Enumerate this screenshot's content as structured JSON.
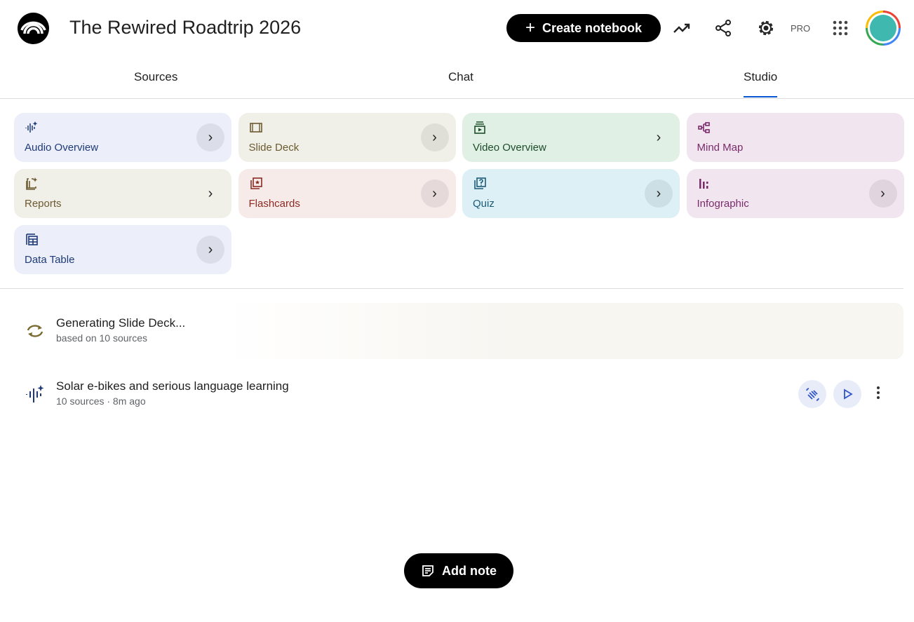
{
  "header": {
    "title": "The Rewired Roadtrip 2026",
    "create_label": "Create notebook",
    "pro_label": "PRO",
    "icons": [
      "analytics-icon",
      "share-icon",
      "settings-icon",
      "apps-grid-icon"
    ]
  },
  "tabs": [
    {
      "label": "Sources"
    },
    {
      "label": "Chat"
    },
    {
      "label": "Studio",
      "active": true
    }
  ],
  "studio_cards": [
    {
      "label": "Audio Overview",
      "icon": "audio-waveform-icon",
      "bg": "#eceffa",
      "color": "#1f3a78",
      "chevron_bg": true
    },
    {
      "label": "Slide Deck",
      "icon": "slides-icon",
      "bg": "#f1f0e8",
      "color": "#6b5a30",
      "chevron_bg": true
    },
    {
      "label": "Video Overview",
      "icon": "video-icon",
      "bg": "#e1f0e5",
      "color": "#1d4d2b",
      "chevron_bg": false
    },
    {
      "label": "Mind Map",
      "icon": "mind-map-icon",
      "bg": "#f1e6f0",
      "color": "#7a2a6b",
      "chevron": false
    },
    {
      "label": "Reports",
      "icon": "reports-icon",
      "bg": "#f1f0e8",
      "color": "#6b5a30",
      "chevron_bg": false
    },
    {
      "label": "Flashcards",
      "icon": "flashcards-icon",
      "bg": "#f7ebea",
      "color": "#8a2a22",
      "chevron_bg": true
    },
    {
      "label": "Quiz",
      "icon": "quiz-icon",
      "bg": "#dcf0f6",
      "color": "#1b5b78",
      "chevron_bg": true
    },
    {
      "label": "Infographic",
      "icon": "infographic-icon",
      "bg": "#f1e6f0",
      "color": "#7a2a6b",
      "chevron_bg": true
    },
    {
      "label": "Data Table",
      "icon": "table-icon",
      "bg": "#eceffa",
      "color": "#1f3a78",
      "chevron_bg": true
    }
  ],
  "generating": {
    "title": "Generating Slide Deck...",
    "subtitle": "based on 10 sources"
  },
  "artifact": {
    "title": "Solar e-bikes and serious language learning",
    "subtitle": "10 sources · 8m ago"
  },
  "add_note_label": "Add note"
}
